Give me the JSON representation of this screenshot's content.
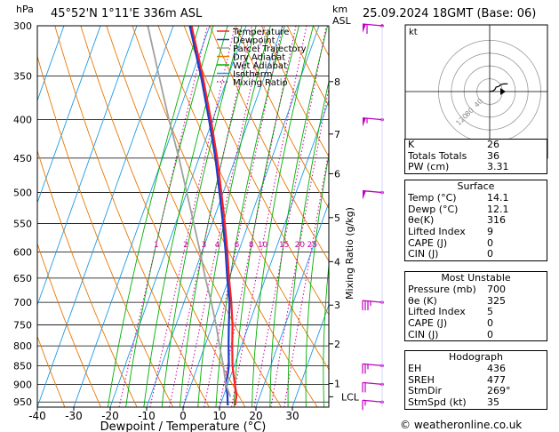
{
  "header": {
    "location": "45°52'N  1°11'E  336m  ASL",
    "datetime": "25.09.2024  18GMT  (Base: 06)",
    "left_unit": "hPa",
    "km_unit_1": "km",
    "km_unit_2": "ASL"
  },
  "colors": {
    "temperature": "#ff2020",
    "dewpoint": "#1e3cc8",
    "parcel": "#a0a0a0",
    "dry_adiabat": "#e87800",
    "wet_adiabat": "#00b000",
    "isotherm": "#1e9be6",
    "mixing_ratio": "#d000a0",
    "wind": "#c000c0"
  },
  "chart_data": {
    "type": "line",
    "title": "",
    "xlabel": "Dewpoint / Temperature (°C)",
    "ylabel": "hPa",
    "right_label": "Mixing Ratio (g/kg)",
    "xlim": [
      -40,
      40
    ],
    "x_ticks": [
      -40,
      -30,
      -20,
      -10,
      0,
      10,
      20,
      30
    ],
    "p_ticks": [
      300,
      350,
      400,
      450,
      500,
      550,
      600,
      650,
      700,
      750,
      800,
      850,
      900,
      950
    ],
    "km_ticks": [
      {
        "label": "8",
        "p": 356
      },
      {
        "label": "7",
        "p": 418
      },
      {
        "label": "6",
        "p": 472
      },
      {
        "label": "5",
        "p": 540
      },
      {
        "label": "4",
        "p": 618
      },
      {
        "label": "3",
        "p": 706
      },
      {
        "label": "2",
        "p": 795
      },
      {
        "label": "1",
        "p": 898
      },
      {
        "label": "LCL",
        "p": 935
      }
    ],
    "mixing_ratio_labels": [
      "1",
      "2",
      "3",
      "4",
      "6",
      "8",
      "10",
      "15",
      "20",
      "25"
    ],
    "mixing_ratio_values": [
      1,
      2,
      3,
      4,
      6,
      8,
      10,
      15,
      20,
      25
    ],
    "legend": [
      "Temperature",
      "Dewpoint",
      "Parcel Trajectory",
      "Dry Adiabat",
      "Wet Adiabat",
      "Isotherm",
      "Mixing Ratio"
    ],
    "legend_placement": "top-center",
    "series": [
      {
        "name": "Temperature",
        "points": [
          [
            14.1,
            960
          ],
          [
            13.5,
            930
          ],
          [
            12,
            900
          ],
          [
            10.5,
            870
          ],
          [
            9.5,
            850
          ],
          [
            7.5,
            800
          ],
          [
            5.5,
            750
          ],
          [
            3,
            700
          ],
          [
            0,
            650
          ],
          [
            -3,
            600
          ],
          [
            -6.5,
            550
          ],
          [
            -10.5,
            500
          ],
          [
            -15,
            450
          ],
          [
            -20.5,
            400
          ],
          [
            -27,
            350
          ],
          [
            -35,
            300
          ]
        ]
      },
      {
        "name": "Dewpoint",
        "points": [
          [
            12.1,
            960
          ],
          [
            11,
            930
          ],
          [
            9.5,
            900
          ],
          [
            9,
            870
          ],
          [
            8.5,
            850
          ],
          [
            6.5,
            800
          ],
          [
            4.5,
            750
          ],
          [
            2.5,
            700
          ],
          [
            -0.5,
            650
          ],
          [
            -3.5,
            600
          ],
          [
            -7,
            550
          ],
          [
            -11,
            500
          ],
          [
            -15.5,
            450
          ],
          [
            -21,
            400
          ],
          [
            -27.5,
            350
          ],
          [
            -35.5,
            300
          ]
        ]
      },
      {
        "name": "Parcel Trajectory",
        "points": [
          [
            12,
            935
          ],
          [
            9.5,
            900
          ],
          [
            7,
            850
          ],
          [
            4,
            800
          ],
          [
            1,
            750
          ],
          [
            -2.5,
            700
          ],
          [
            -6.5,
            650
          ],
          [
            -10.5,
            600
          ],
          [
            -15,
            550
          ],
          [
            -20,
            500
          ],
          [
            -25.5,
            450
          ],
          [
            -32,
            400
          ],
          [
            -39,
            350
          ],
          [
            -47,
            300
          ]
        ]
      }
    ],
    "wind_barbs": [
      {
        "p": 300,
        "dir": 270,
        "spd": 60
      },
      {
        "p": 400,
        "dir": 270,
        "spd": 55
      },
      {
        "p": 500,
        "dir": 270,
        "spd": 50
      },
      {
        "p": 700,
        "dir": 270,
        "spd": 35
      },
      {
        "p": 850,
        "dir": 270,
        "spd": 25
      },
      {
        "p": 900,
        "dir": 270,
        "spd": 20
      },
      {
        "p": 950,
        "dir": 260,
        "spd": 15
      }
    ],
    "hodograph": {
      "label": "kt",
      "rings": [
        {
          "r": 20,
          "label": ""
        },
        {
          "r": 40,
          "label": "40"
        },
        {
          "r": 60,
          "label": "80"
        },
        {
          "r": 80,
          "label": "120"
        }
      ],
      "trace": [
        [
          0,
          0
        ],
        [
          -5,
          2
        ],
        [
          -8,
          6
        ],
        [
          -10,
          14
        ],
        [
          -14,
          16
        ],
        [
          -18,
          22
        ],
        [
          -22,
          24
        ],
        [
          -28,
          24
        ]
      ],
      "storm_motion": [
        12,
        0
      ]
    }
  },
  "table": {
    "k_rows": [
      {
        "label": "K",
        "value": "26"
      },
      {
        "label": "Totals Totals",
        "value": "36"
      },
      {
        "label": "PW (cm)",
        "value": "3.31"
      }
    ],
    "surface": {
      "title": "Surface",
      "rows": [
        {
          "label": "Temp (°C)",
          "value": "14.1"
        },
        {
          "label": "Dewp (°C)",
          "value": "12.1"
        },
        {
          "label": "θe(K)",
          "value": "316"
        },
        {
          "label": "Lifted Index",
          "value": "9"
        },
        {
          "label": "CAPE (J)",
          "value": "0"
        },
        {
          "label": "CIN (J)",
          "value": "0"
        }
      ]
    },
    "unstable": {
      "title": "Most Unstable",
      "rows": [
        {
          "label": "Pressure (mb)",
          "value": "700"
        },
        {
          "label": "θe (K)",
          "value": "325"
        },
        {
          "label": "Lifted Index",
          "value": "5"
        },
        {
          "label": "CAPE (J)",
          "value": "0"
        },
        {
          "label": "CIN (J)",
          "value": "0"
        }
      ]
    },
    "hodo": {
      "title": "Hodograph",
      "rows": [
        {
          "label": "EH",
          "value": "436"
        },
        {
          "label": "SREH",
          "value": "477"
        },
        {
          "label": "StmDir",
          "value": "269°"
        },
        {
          "label": "StmSpd (kt)",
          "value": "35"
        }
      ]
    }
  },
  "copyright": "© weatheronline.co.uk"
}
